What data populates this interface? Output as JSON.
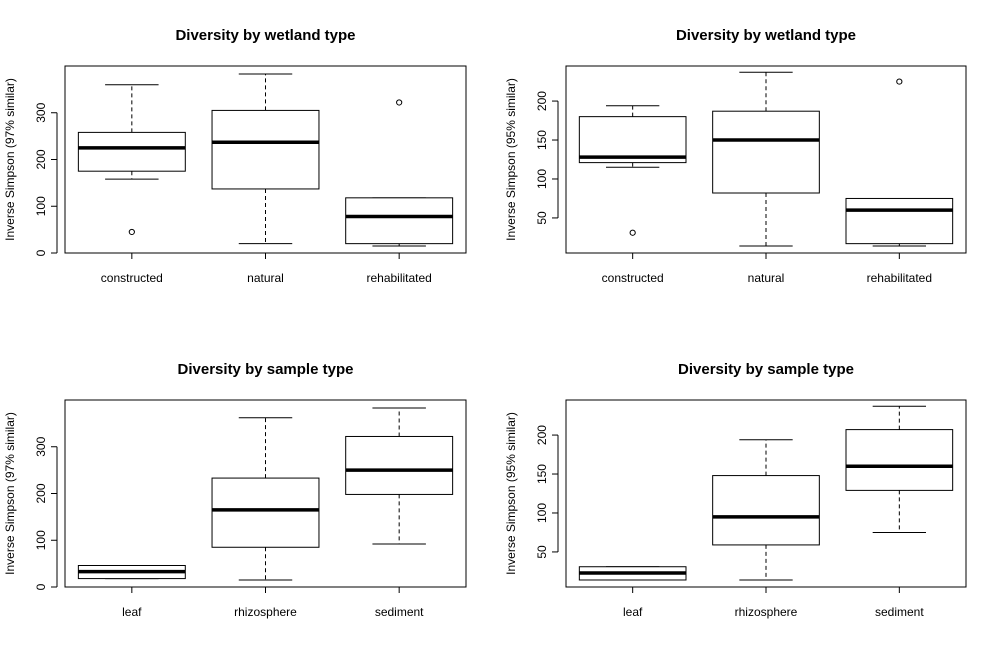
{
  "chart_data": [
    {
      "type": "boxplot",
      "title": "Diversity by wetland type",
      "ylabel": "Inverse Simpson (97% similar)",
      "ylim": [
        0,
        400
      ],
      "yticks": [
        0,
        100,
        200,
        300
      ],
      "categories": [
        "constructed",
        "natural",
        "rehabilitated"
      ],
      "boxes": [
        {
          "whisker_low": 158,
          "q1": 175,
          "median": 225,
          "q3": 258,
          "whisker_high": 360,
          "outliers": [
            45
          ]
        },
        {
          "whisker_low": 20,
          "q1": 137,
          "median": 237,
          "q3": 305,
          "whisker_high": 383,
          "outliers": []
        },
        {
          "whisker_low": 15,
          "q1": 20,
          "median": 78,
          "q3": 118,
          "whisker_high": 118,
          "outliers": [
            322
          ]
        }
      ]
    },
    {
      "type": "boxplot",
      "title": "Diversity by wetland type",
      "ylabel": "Inverse Simpson (95% similar)",
      "ylim": [
        5,
        245
      ],
      "yticks": [
        50,
        100,
        150,
        200
      ],
      "categories": [
        "constructed",
        "natural",
        "rehabilitated"
      ],
      "boxes": [
        {
          "whisker_low": 115,
          "q1": 121,
          "median": 128,
          "q3": 180,
          "whisker_high": 194,
          "outliers": [
            31
          ]
        },
        {
          "whisker_low": 14,
          "q1": 82,
          "median": 150,
          "q3": 187,
          "whisker_high": 237,
          "outliers": []
        },
        {
          "whisker_low": 14,
          "q1": 17,
          "median": 60,
          "q3": 75,
          "whisker_high": 75,
          "outliers": [
            225
          ]
        }
      ]
    },
    {
      "type": "boxplot",
      "title": "Diversity by sample type",
      "ylabel": "Inverse Simpson (97% similar)",
      "ylim": [
        0,
        400
      ],
      "yticks": [
        0,
        100,
        200,
        300
      ],
      "categories": [
        "leaf",
        "rhizosphere",
        "sediment"
      ],
      "boxes": [
        {
          "whisker_low": 18,
          "q1": 18,
          "median": 33,
          "q3": 46,
          "whisker_high": 46,
          "outliers": []
        },
        {
          "whisker_low": 15,
          "q1": 85,
          "median": 165,
          "q3": 233,
          "whisker_high": 362,
          "outliers": []
        },
        {
          "whisker_low": 92,
          "q1": 198,
          "median": 250,
          "q3": 322,
          "whisker_high": 383,
          "outliers": []
        }
      ]
    },
    {
      "type": "boxplot",
      "title": "Diversity by sample type",
      "ylabel": "Inverse Simpson (95% similar)",
      "ylim": [
        5,
        245
      ],
      "yticks": [
        50,
        100,
        150,
        200
      ],
      "categories": [
        "leaf",
        "rhizosphere",
        "sediment"
      ],
      "boxes": [
        {
          "whisker_low": 14,
          "q1": 14,
          "median": 23,
          "q3": 31,
          "whisker_high": 31,
          "outliers": []
        },
        {
          "whisker_low": 14,
          "q1": 59,
          "median": 95,
          "q3": 148,
          "whisker_high": 194,
          "outliers": []
        },
        {
          "whisker_low": 75,
          "q1": 129,
          "median": 160,
          "q3": 207,
          "whisker_high": 237,
          "outliers": []
        }
      ]
    }
  ]
}
